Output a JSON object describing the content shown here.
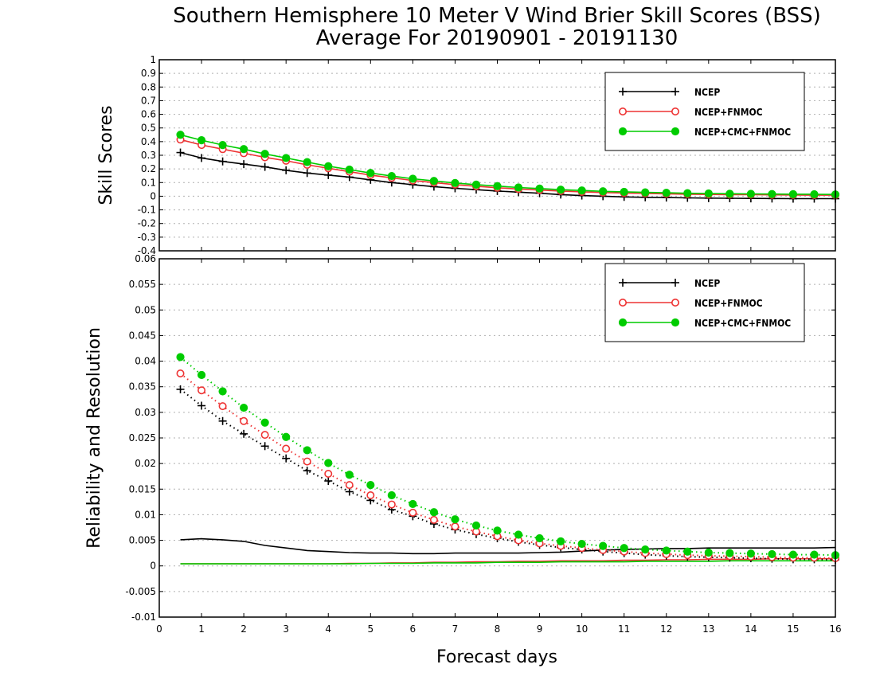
{
  "title_line1": "Southern Hemisphere 10 Meter V Wind Brier Skill Scores (BSS)",
  "title_line2": "Average For 20190901 - 20191130",
  "xlabel": "Forecast days",
  "colors": {
    "NCEP": "#000000",
    "NCEP+FNMOC": "#ee3333",
    "NCEP+CMC+FNMOC": "#00cc00"
  },
  "chart_data": [
    {
      "type": "line",
      "panel": "top",
      "ylabel": "Skill Scores",
      "xlim": [
        0,
        16
      ],
      "ylim": [
        -0.4,
        1
      ],
      "xticks": [
        "0",
        "1",
        "2",
        "3",
        "4",
        "5",
        "6",
        "7",
        "8",
        "9",
        "10",
        "11",
        "12",
        "13",
        "14",
        "15",
        "16"
      ],
      "yticks": [
        "-0.4",
        "-0.3",
        "-0.2",
        "-0.1",
        "0",
        "0.1",
        "0.2",
        "0.3",
        "0.4",
        "0.5",
        "0.6",
        "0.7",
        "0.8",
        "0.9",
        "1"
      ],
      "grid": true,
      "legend_position": "top-right",
      "x": [
        0.5,
        1,
        1.5,
        2,
        2.5,
        3,
        3.5,
        4,
        4.5,
        5,
        5.5,
        6,
        6.5,
        7,
        7.5,
        8,
        8.5,
        9,
        9.5,
        10,
        10.5,
        11,
        11.5,
        12,
        12.5,
        13,
        13.5,
        14,
        14.5,
        15,
        15.5,
        16
      ],
      "series": [
        {
          "name": "NCEP",
          "marker": "plus",
          "values": [
            0.32,
            0.28,
            0.255,
            0.235,
            0.215,
            0.19,
            0.17,
            0.155,
            0.14,
            0.12,
            0.1,
            0.085,
            0.07,
            0.058,
            0.048,
            0.038,
            0.03,
            0.022,
            0.012,
            0.005,
            0.0,
            -0.005,
            -0.008,
            -0.01,
            -0.012,
            -0.014,
            -0.015,
            -0.016,
            -0.017,
            -0.018,
            -0.018,
            -0.018
          ]
        },
        {
          "name": "NCEP+FNMOC",
          "marker": "circle-open",
          "values": [
            0.415,
            0.375,
            0.345,
            0.315,
            0.285,
            0.26,
            0.23,
            0.205,
            0.18,
            0.155,
            0.135,
            0.115,
            0.1,
            0.085,
            0.073,
            0.062,
            0.053,
            0.045,
            0.038,
            0.032,
            0.027,
            0.023,
            0.02,
            0.017,
            0.015,
            0.013,
            0.012,
            0.011,
            0.01,
            0.009,
            0.008,
            0.008
          ]
        },
        {
          "name": "NCEP+CMC+FNMOC",
          "marker": "circle-filled",
          "values": [
            0.45,
            0.41,
            0.375,
            0.345,
            0.31,
            0.28,
            0.25,
            0.22,
            0.195,
            0.17,
            0.148,
            0.128,
            0.112,
            0.097,
            0.085,
            0.074,
            0.064,
            0.056,
            0.048,
            0.042,
            0.036,
            0.032,
            0.028,
            0.025,
            0.022,
            0.02,
            0.018,
            0.017,
            0.016,
            0.015,
            0.014,
            0.013
          ]
        }
      ]
    },
    {
      "type": "line",
      "panel": "bottom",
      "ylabel": "Reliability and Resolution",
      "xlim": [
        0,
        16
      ],
      "ylim": [
        -0.01,
        0.06
      ],
      "xticks": [
        "0",
        "1",
        "2",
        "3",
        "4",
        "5",
        "6",
        "7",
        "8",
        "9",
        "10",
        "11",
        "12",
        "13",
        "14",
        "15",
        "16"
      ],
      "yticks": [
        "-0.01",
        "-0.005",
        "0",
        "0.005",
        "0.01",
        "0.015",
        "0.02",
        "0.025",
        "0.03",
        "0.035",
        "0.04",
        "0.045",
        "0.05",
        "0.055",
        "0.06"
      ],
      "grid": true,
      "legend_position": "top-right",
      "x": [
        0.5,
        1,
        1.5,
        2,
        2.5,
        3,
        3.5,
        4,
        4.5,
        5,
        5.5,
        6,
        6.5,
        7,
        7.5,
        8,
        8.5,
        9,
        9.5,
        10,
        10.5,
        11,
        11.5,
        12,
        12.5,
        13,
        13.5,
        14,
        14.5,
        15,
        15.5,
        16
      ],
      "series": [
        {
          "name": "NCEP",
          "style": "solid",
          "marker": "none",
          "values": [
            0.0051,
            0.0053,
            0.0051,
            0.0048,
            0.004,
            0.0035,
            0.003,
            0.0028,
            0.0026,
            0.0025,
            0.0025,
            0.0024,
            0.0024,
            0.0025,
            0.0025,
            0.0025,
            0.0025,
            0.0026,
            0.0027,
            0.0029,
            0.0031,
            0.0032,
            0.0033,
            0.0034,
            0.0034,
            0.0035,
            0.0035,
            0.0035,
            0.0035,
            0.0035,
            0.0035,
            0.0036
          ]
        },
        {
          "name": "NCEP+FNMOC",
          "style": "solid",
          "marker": "none",
          "values": [
            0.0004,
            0.0004,
            0.0004,
            0.0004,
            0.0004,
            0.0004,
            0.0004,
            0.0004,
            0.0005,
            0.0005,
            0.0006,
            0.0006,
            0.0007,
            0.0007,
            0.0008,
            0.0008,
            0.0009,
            0.0009,
            0.001,
            0.001,
            0.001,
            0.0011,
            0.0011,
            0.0012,
            0.0012,
            0.0013,
            0.0013,
            0.0013,
            0.0014,
            0.0014,
            0.0014,
            0.0014
          ]
        },
        {
          "name": "NCEP+CMC+FNMOC",
          "style": "solid",
          "marker": "none",
          "values": [
            0.0004,
            0.0004,
            0.0004,
            0.0004,
            0.0004,
            0.0004,
            0.0004,
            0.0004,
            0.0004,
            0.0005,
            0.0005,
            0.0005,
            0.0006,
            0.0006,
            0.0006,
            0.0007,
            0.0007,
            0.0007,
            0.0008,
            0.0008,
            0.0008,
            0.0008,
            0.0009,
            0.0009,
            0.0009,
            0.0009,
            0.001,
            0.001,
            0.001,
            0.001,
            0.001,
            0.001
          ]
        },
        {
          "name": "NCEP",
          "style": "dotted",
          "marker": "plus",
          "values": [
            0.0345,
            0.0313,
            0.0283,
            0.0258,
            0.0234,
            0.021,
            0.0186,
            0.0166,
            0.0145,
            0.0128,
            0.011,
            0.0097,
            0.0082,
            0.0071,
            0.0062,
            0.0054,
            0.0047,
            0.0041,
            0.0036,
            0.0032,
            0.0028,
            0.0025,
            0.0022,
            0.002,
            0.0018,
            0.0017,
            0.0016,
            0.0015,
            0.0014,
            0.0013,
            0.0013,
            0.0012
          ]
        },
        {
          "name": "NCEP+FNMOC",
          "style": "dotted",
          "marker": "circle-open",
          "values": [
            0.0376,
            0.0343,
            0.0312,
            0.0283,
            0.0256,
            0.0229,
            0.0204,
            0.018,
            0.0158,
            0.0138,
            0.012,
            0.0104,
            0.009,
            0.0077,
            0.0067,
            0.0058,
            0.005,
            0.0044,
            0.0039,
            0.0035,
            0.0031,
            0.0028,
            0.0025,
            0.0023,
            0.0021,
            0.002,
            0.0019,
            0.0018,
            0.0017,
            0.0016,
            0.0016,
            0.0015
          ]
        },
        {
          "name": "NCEP+CMC+FNMOC",
          "style": "dotted",
          "marker": "circle-filled",
          "values": [
            0.0408,
            0.0373,
            0.0341,
            0.0309,
            0.028,
            0.0252,
            0.0226,
            0.0201,
            0.0178,
            0.0158,
            0.0138,
            0.0121,
            0.0105,
            0.0091,
            0.0079,
            0.0069,
            0.0061,
            0.0054,
            0.0048,
            0.0043,
            0.0039,
            0.0035,
            0.0032,
            0.003,
            0.0028,
            0.0026,
            0.0025,
            0.0024,
            0.0023,
            0.0022,
            0.0022,
            0.0021
          ]
        }
      ]
    }
  ]
}
